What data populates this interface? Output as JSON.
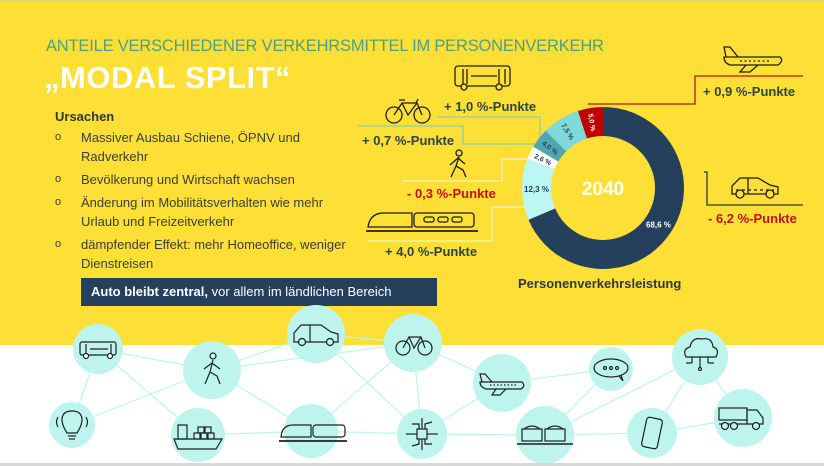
{
  "header": {
    "subtitle": "ANTEILE VERSCHIEDENER VERKEHRSMITTEL IM PERSONENVERKEHR",
    "title": "„MODAL SPLIT“"
  },
  "causes": {
    "heading": "Ursachen",
    "bullet_glyph": "o",
    "items": [
      "Massiver Ausbau Schiene, ÖPNV und Radverkehr",
      "Bevölkerung und Wirtschaft wachsen",
      "Änderung im Mobilitätsverhalten wie mehr Urlaub und Freizeitverkehr",
      "dämpfender Effekt: mehr Homeoffice, weniger Dienstreisen"
    ]
  },
  "banner": {
    "bold": "Auto bleibt zentral,",
    "rest": " vor allem im ländlichen Bereich"
  },
  "colors": {
    "background": "#fddf35",
    "subtitle": "#4ba08a",
    "dark_blue": "#25405d",
    "positive_text": "#2e4640",
    "negative_text": "#c0141a",
    "node_fill": "#bdf5ee"
  },
  "change_labels": {
    "bus": "+ 1,0 %-Punkte",
    "bike": "+ 0,7 %-Punkte",
    "walk": "- 0,3 %-Punkte",
    "train": "+ 4,0 %-Punkte",
    "plane": "+ 0,9 %-Punkte",
    "car": "- 6,2 %-Punkte"
  },
  "chart_data": {
    "type": "pie",
    "variant": "donut",
    "center_label": "2040",
    "caption": "Personenverkehrsleistung",
    "unit": "%",
    "slices": [
      {
        "name": "Auto",
        "value": 68.6,
        "label": "68,6 %",
        "color": "#25405d",
        "label_color": "#ffffff",
        "change": "- 6,2 %-Punkte"
      },
      {
        "name": "Schiene",
        "value": 12.3,
        "label": "12,3 %",
        "color": "#bdf7f3",
        "label_color": "#25405d",
        "change": "+ 4,0 %-Punkte"
      },
      {
        "name": "Fußverkehr",
        "value": 2.6,
        "label": "2,6 %",
        "color": "#ffffff",
        "label_color": "#25405d",
        "change": "- 0,3 %-Punkte"
      },
      {
        "name": "Radverkehr",
        "value": 4.0,
        "label": "4,0 %",
        "color": "#4fa6b0",
        "label_color": "#25405d",
        "change": "+ 0,7 %-Punkte"
      },
      {
        "name": "ÖPNV/Bus",
        "value": 7.5,
        "label": "7,5 %",
        "color": "#7fd9d9",
        "label_color": "#25405d",
        "change": "+ 1,0 %-Punkte"
      },
      {
        "name": "Flugzeug",
        "value": 5.0,
        "label": "5,0 %",
        "color": "#c00000",
        "label_color": "#ffffff",
        "change": "+ 0,9 %-Punkte"
      }
    ]
  },
  "network": {
    "nodes": [
      "bus",
      "walk",
      "car",
      "bike",
      "plane",
      "chat",
      "cloud",
      "lightbulb",
      "ship",
      "train",
      "chip",
      "freight-wagons",
      "smartphone",
      "dump-truck"
    ]
  }
}
